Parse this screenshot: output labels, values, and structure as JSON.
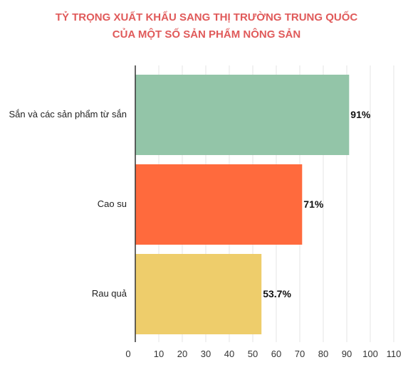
{
  "chart_data": {
    "type": "bar",
    "orientation": "horizontal",
    "title": "TỶ TRỌNG XUẤT KHẨU SANG THỊ TRƯỜNG TRUNG QUỐC",
    "subtitle": "CỦA MỘT SỐ SẢN PHẨM NÔNG SẢN",
    "categories": [
      "Sắn và các sản phẩm từ sắn",
      "Cao su",
      "Rau quả"
    ],
    "values": [
      91,
      71,
      53.7
    ],
    "value_labels": [
      "91%",
      "71%",
      "53.7%"
    ],
    "colors": [
      "#93c5a8",
      "#ff6a3d",
      "#eecd6b"
    ],
    "xlim": [
      0,
      110
    ],
    "ticks": [
      0,
      10,
      20,
      30,
      40,
      50,
      60,
      70,
      80,
      90,
      100,
      110
    ],
    "tick_labels": [
      "0",
      "10",
      "20",
      "30",
      "40",
      "50",
      "60",
      "70",
      "80",
      "90",
      "100",
      "110"
    ],
    "grid": true,
    "title_color": "#e05a5a"
  }
}
